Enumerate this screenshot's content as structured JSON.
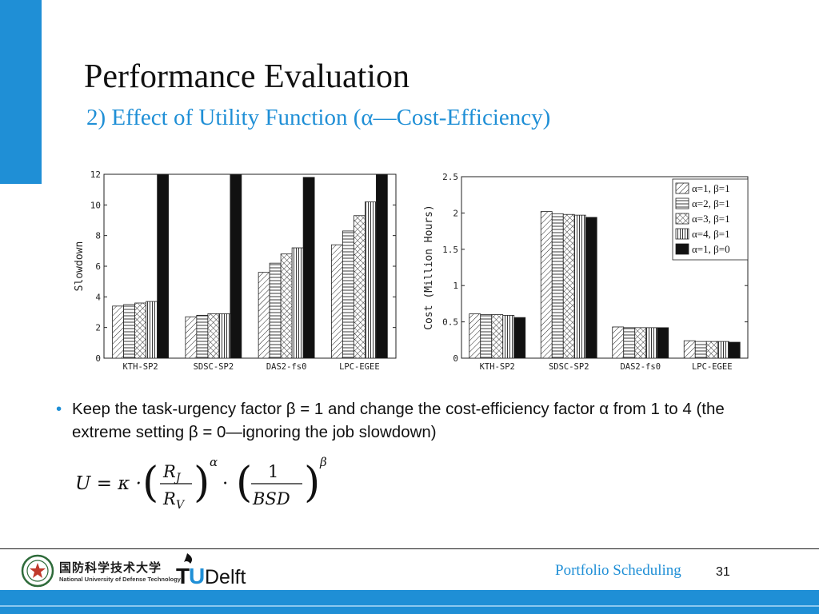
{
  "slide": {
    "title": "Performance Evaluation",
    "subtitle": "2) Effect of Utility Function (α—Cost-Efficiency)",
    "bullet": "Keep the task-urgency factor β = 1 and change the cost-efficiency factor α from 1 to 4 (the extreme setting β = 0—ignoring the job slowdown)",
    "formula": {
      "lhs": "U = κ ·",
      "frac1_num": "R",
      "frac1_num_sub": "J",
      "frac1_den": "R",
      "frac1_den_sub": "V",
      "exp1": "α",
      "dot": "·",
      "frac2_num": "1",
      "frac2_den": "BSD",
      "exp2": "β"
    },
    "footer_text": "Portfolio Scheduling",
    "page_number": "31",
    "logo_nudt_cn": "国防科学技术大学",
    "logo_nudt_en": "National University of Defense Technology",
    "logo_tud_t": "T",
    "logo_tud_u": "U",
    "logo_tud_rest": "Delft"
  },
  "colors": {
    "accent": "#1f8fd6",
    "footer_stripe": "#8cc8ef",
    "text": "#111111"
  },
  "chart_data": [
    {
      "type": "bar",
      "title": "",
      "xlabel": "",
      "ylabel": "Slowdown",
      "ylim": [
        0,
        12
      ],
      "yticks": [
        0,
        2,
        4,
        6,
        8,
        10,
        12
      ],
      "categories": [
        "KTH-SP2",
        "SDSC-SP2",
        "DAS2-fs0",
        "LPC-EGEE"
      ],
      "series": [
        {
          "pattern": "diagonal-right",
          "values": [
            3.4,
            2.7,
            5.6,
            7.4
          ]
        },
        {
          "pattern": "horizontal",
          "values": [
            3.5,
            2.8,
            6.2,
            8.3
          ]
        },
        {
          "pattern": "crosshatch",
          "values": [
            3.6,
            2.9,
            6.8,
            9.3
          ]
        },
        {
          "pattern": "vertical",
          "values": [
            3.7,
            2.9,
            7.2,
            10.2
          ]
        },
        {
          "pattern": "solid",
          "values": [
            12.0,
            12.0,
            11.8,
            12.0
          ]
        }
      ],
      "grid": false,
      "legend": "none"
    },
    {
      "type": "bar",
      "title": "",
      "xlabel": "",
      "ylabel": "Cost (Million Hours)",
      "ylim": [
        0,
        2.5
      ],
      "yticks": [
        0,
        0.5,
        1,
        1.5,
        2,
        2.5
      ],
      "ytick_labels": [
        "0",
        "0.5",
        "1",
        "1.5",
        "2",
        "2.5"
      ],
      "categories": [
        "KTH-SP2",
        "SDSC-SP2",
        "DAS2-fs0",
        "LPC-EGEE"
      ],
      "series": [
        {
          "name": "α=1, β=1",
          "pattern": "diagonal-right",
          "values": [
            0.61,
            2.02,
            0.43,
            0.24
          ]
        },
        {
          "name": "α=2, β=1",
          "pattern": "horizontal",
          "values": [
            0.6,
            1.99,
            0.42,
            0.23
          ]
        },
        {
          "name": "α=3, β=1",
          "pattern": "crosshatch",
          "values": [
            0.6,
            1.98,
            0.42,
            0.23
          ]
        },
        {
          "name": "α=4, β=1",
          "pattern": "vertical",
          "values": [
            0.59,
            1.97,
            0.42,
            0.23
          ]
        },
        {
          "name": "α=1, β=0",
          "pattern": "solid",
          "values": [
            0.56,
            1.94,
            0.42,
            0.22
          ]
        }
      ],
      "grid": false,
      "legend": "top-right"
    }
  ]
}
